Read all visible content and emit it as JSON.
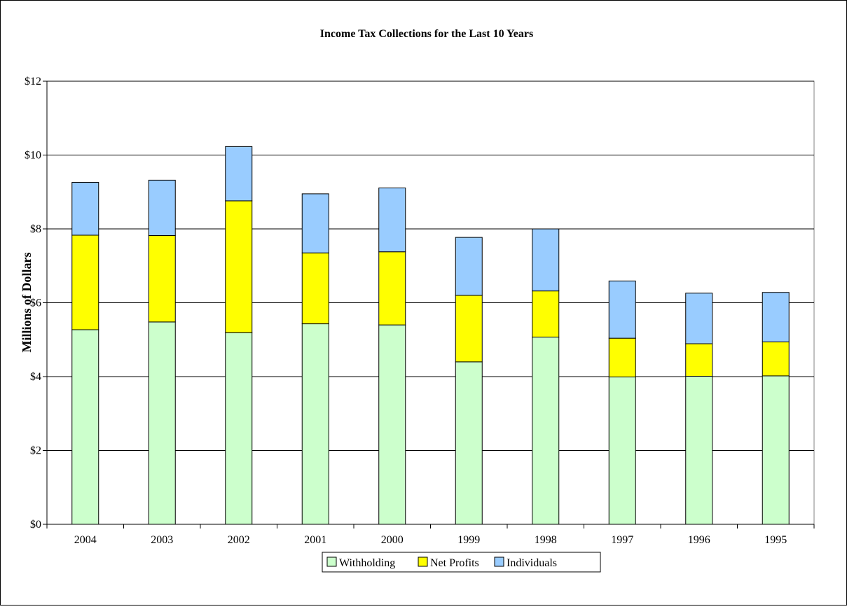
{
  "chart_data": {
    "type": "bar",
    "stacked": true,
    "title": "Income Tax Collections for the Last 10 Years",
    "xlabel": "",
    "ylabel": "Millions of Dollars",
    "ylim": [
      0,
      12
    ],
    "yticks": [
      0,
      2,
      4,
      6,
      8,
      10,
      12
    ],
    "ytick_labels": [
      "$0",
      "$2",
      "$4",
      "$6",
      "$8",
      "$10",
      "$12"
    ],
    "grid": "horizontal",
    "legend_position": "bottom",
    "categories": [
      "2004",
      "2003",
      "2002",
      "2001",
      "2000",
      "1999",
      "1998",
      "1997",
      "1996",
      "1995"
    ],
    "series": [
      {
        "name": "Withholding",
        "color": "#ccffcc",
        "values": [
          5.27,
          5.48,
          5.19,
          5.43,
          5.4,
          4.4,
          5.07,
          3.99,
          4.01,
          4.02
        ]
      },
      {
        "name": "Net Profits",
        "color": "#ffff00",
        "values": [
          2.56,
          2.34,
          3.57,
          1.92,
          1.98,
          1.8,
          1.25,
          1.05,
          0.88,
          0.92
        ]
      },
      {
        "name": "Individuals",
        "color": "#99ccff",
        "values": [
          1.43,
          1.5,
          1.47,
          1.6,
          1.73,
          1.57,
          1.68,
          1.55,
          1.37,
          1.34
        ]
      }
    ]
  }
}
